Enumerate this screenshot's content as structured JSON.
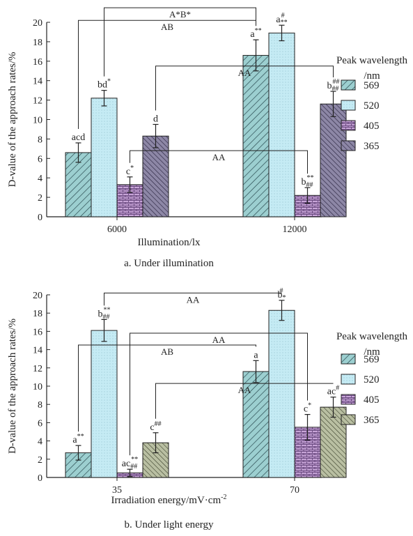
{
  "legend": {
    "title_line1": "Peak wavelength",
    "title_line2": "/nm",
    "entries": [
      "569",
      "520",
      "405",
      "365"
    ]
  },
  "colors": {
    "569": "#9ccfd0",
    "520": "#c5ebf4",
    "405": "#c9a6d9",
    "365_a": "#8d87a6",
    "365_b": "#b9bfa2",
    "line": "#222222"
  },
  "chart_data": [
    {
      "type": "bar",
      "caption": "a. Under illumination",
      "xlabel": "Illumination/lx",
      "ylabel": "D-value of the approach rates/%",
      "ylim": [
        0,
        20
      ],
      "yticks": [
        0,
        2,
        4,
        6,
        8,
        10,
        12,
        14,
        16,
        18,
        20
      ],
      "categories": [
        "6000",
        "12000"
      ],
      "legend_title": "Peak wavelength /nm",
      "series": [
        {
          "name": "569",
          "values": [
            6.6,
            16.6
          ],
          "errors": [
            1.0,
            1.6
          ],
          "labels": [
            {
              "base": "acd",
              "sup": ""
            },
            {
              "base": "a",
              "sup": "**"
            }
          ]
        },
        {
          "name": "520",
          "values": [
            12.2,
            18.9
          ],
          "errors": [
            0.8,
            0.8
          ],
          "labels": [
            {
              "base": "bd",
              "sup": "*"
            },
            {
              "base": "a",
              "sup": "#",
              "sub": "**"
            }
          ]
        },
        {
          "name": "405",
          "values": [
            3.3,
            2.2
          ],
          "errors": [
            0.8,
            0.8
          ],
          "labels": [
            {
              "base": "c",
              "sup": "*"
            },
            {
              "base": "b",
              "sup": "**",
              "sub": "##"
            }
          ]
        },
        {
          "name": "365",
          "values": [
            8.3,
            11.6
          ],
          "errors": [
            1.2,
            1.3
          ],
          "labels": [
            {
              "base": "d",
              "sup": ""
            },
            {
              "base": "b",
              "sup": "##",
              "sub": "##"
            }
          ]
        }
      ],
      "significance": [
        {
          "label": "A*B*",
          "from": [
            0,
            1
          ],
          "to": [
            1,
            0
          ],
          "y": 21.5
        },
        {
          "label": "AB",
          "from": [
            0,
            0
          ],
          "to": [
            1,
            0
          ],
          "y": 20.2
        },
        {
          "label": "AA",
          "from": [
            1,
            3
          ],
          "to": [
            0,
            3
          ],
          "y": 15.5
        },
        {
          "label": "AA",
          "from": [
            0,
            2
          ],
          "to": [
            1,
            2
          ],
          "y": 6.8
        }
      ]
    },
    {
      "type": "bar",
      "caption": "b. Under light energy",
      "xlabel": "Irradiation energy/mV·cm",
      "xlabel_sup": "-2",
      "ylabel": "D-value of the approach rates/%",
      "ylim": [
        0,
        20
      ],
      "yticks": [
        0,
        2,
        4,
        6,
        8,
        10,
        12,
        14,
        16,
        18,
        20
      ],
      "categories": [
        "35",
        "70"
      ],
      "legend_title": "Peak wavelength /nm",
      "series": [
        {
          "name": "569",
          "values": [
            2.7,
            11.6
          ],
          "errors": [
            0.8,
            1.2
          ],
          "labels": [
            {
              "base": "a",
              "sup": "**"
            },
            {
              "base": "a",
              "sup": ""
            }
          ]
        },
        {
          "name": "520",
          "values": [
            16.1,
            18.3
          ],
          "errors": [
            1.2,
            1.1
          ],
          "labels": [
            {
              "base": "b",
              "sup": "**",
              "sub": "##"
            },
            {
              "base": "b",
              "sup": "#",
              "sub": "*"
            }
          ]
        },
        {
          "name": "405",
          "values": [
            0.5,
            5.5
          ],
          "errors": [
            0.4,
            1.4
          ],
          "labels": [
            {
              "base": "ac",
              "sup": "**",
              "sub": "##"
            },
            {
              "base": "c",
              "sup": "*"
            }
          ]
        },
        {
          "name": "365",
          "values": [
            3.8,
            7.7
          ],
          "errors": [
            1.1,
            1.1
          ],
          "labels": [
            {
              "base": "c",
              "sup": "##"
            },
            {
              "base": "ac",
              "sup": "#"
            }
          ]
        }
      ],
      "significance": [
        {
          "label": "AA",
          "from": [
            0,
            1
          ],
          "to": [
            1,
            1
          ],
          "y": 20.2
        },
        {
          "label": "AA",
          "from": [
            0,
            2
          ],
          "to": [
            1,
            2
          ],
          "y": 15.8
        },
        {
          "label": "AB",
          "from": [
            0,
            0
          ],
          "to": [
            1,
            0
          ],
          "y": 14.5
        },
        {
          "label": "AA",
          "from": [
            0,
            3
          ],
          "to": [
            1,
            3
          ],
          "y": 10.3
        }
      ]
    }
  ]
}
